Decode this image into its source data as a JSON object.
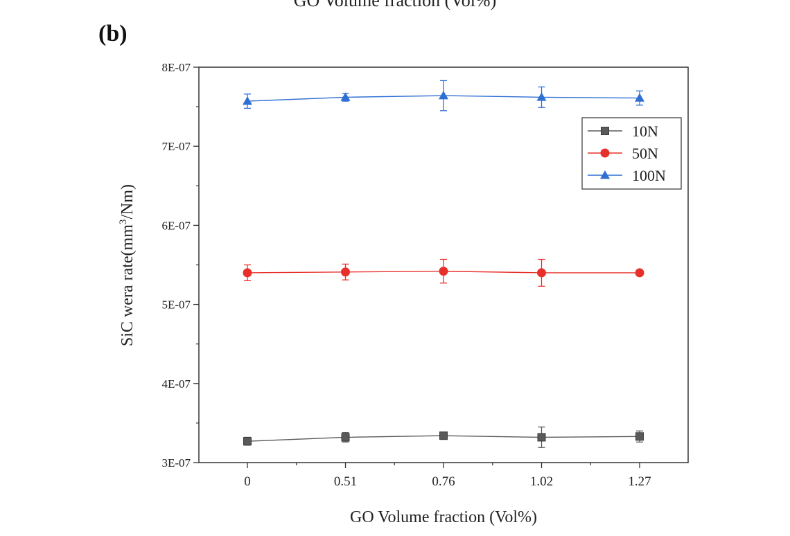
{
  "figure": {
    "top_cut_title": "GO Volume fraction (Vol%)",
    "panel_label": "(b)"
  },
  "chart_data": {
    "type": "line",
    "title": "",
    "xlabel": "GO Volume fraction (Vol%)",
    "ylabel_prefix": "SiC wera rate(mm",
    "ylabel_sup": "3",
    "ylabel_suffix": "/Nm)",
    "categories": [
      "0",
      "0.51",
      "0.76",
      "1.02",
      "1.27"
    ],
    "ylim": [
      3e-07,
      8e-07
    ],
    "yticks": [
      {
        "value": 3e-07,
        "label": "3E-07"
      },
      {
        "value": 4e-07,
        "label": "4E-07"
      },
      {
        "value": 5e-07,
        "label": "5E-07"
      },
      {
        "value": 6e-07,
        "label": "6E-07"
      },
      {
        "value": 7e-07,
        "label": "7E-07"
      },
      {
        "value": 8e-07,
        "label": "8E-07"
      }
    ],
    "legend_position": "upper-right",
    "series": [
      {
        "name": "10N",
        "color": "#5a5a5a",
        "marker": "square",
        "values": [
          3.27e-07,
          3.32e-07,
          3.34e-07,
          3.32e-07,
          3.33e-07
        ],
        "errors": [
          5e-09,
          6e-09,
          3e-09,
          1.3e-08,
          7e-09
        ]
      },
      {
        "name": "50N",
        "color": "#e8302b",
        "marker": "circle",
        "values": [
          5.4e-07,
          5.41e-07,
          5.42e-07,
          5.4e-07,
          5.4e-07
        ],
        "errors": [
          1e-08,
          1e-08,
          1.5e-08,
          1.7e-08,
          2e-09
        ]
      },
      {
        "name": "100N",
        "color": "#2f6fd3",
        "marker": "triangle",
        "values": [
          7.57e-07,
          7.62e-07,
          7.64e-07,
          7.62e-07,
          7.61e-07
        ],
        "errors": [
          9e-09,
          5e-09,
          1.9e-08,
          1.3e-08,
          9e-09
        ]
      }
    ]
  }
}
